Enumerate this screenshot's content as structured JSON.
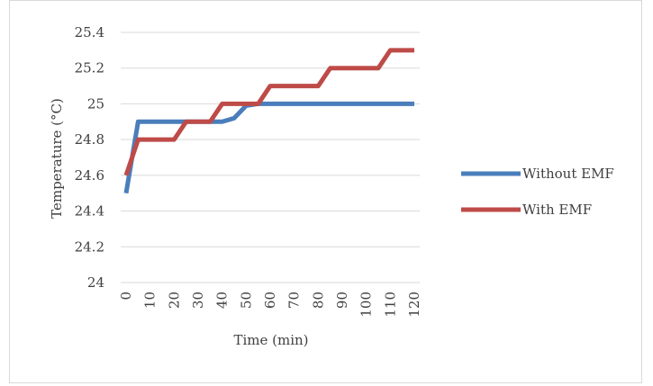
{
  "chart_data": {
    "type": "line",
    "title": "",
    "xlabel": "Time (min)",
    "ylabel": "Temperature (°C)",
    "x": [
      0,
      5,
      10,
      15,
      20,
      25,
      30,
      35,
      40,
      45,
      50,
      55,
      60,
      65,
      70,
      75,
      80,
      85,
      90,
      95,
      100,
      105,
      110,
      115,
      120
    ],
    "x_ticks": [
      "0",
      "10",
      "20",
      "30",
      "40",
      "50",
      "60",
      "70",
      "80",
      "90",
      "100",
      "110",
      "120"
    ],
    "y_ticks": [
      "24",
      "24.2",
      "24.4",
      "24.6",
      "24.8",
      "25",
      "25.2",
      "25.4"
    ],
    "ylim": [
      24,
      25.4
    ],
    "xlim": [
      0,
      120
    ],
    "grid": "horizontal",
    "legend_position": "right",
    "series": [
      {
        "name": "Without EMF",
        "color": "#4a7ebb",
        "values": [
          24.5,
          24.9,
          24.9,
          24.9,
          24.9,
          24.9,
          24.9,
          24.9,
          24.9,
          24.92,
          24.99,
          25.0,
          25.0,
          25.0,
          25.0,
          25.0,
          25.0,
          25.0,
          25.0,
          25.0,
          25.0,
          25.0,
          25.0,
          25.0,
          25.0
        ]
      },
      {
        "name": "With EMF",
        "color": "#be4b48",
        "values": [
          24.6,
          24.8,
          24.8,
          24.8,
          24.8,
          24.9,
          24.9,
          24.9,
          25.0,
          25.0,
          25.0,
          25.0,
          25.1,
          25.1,
          25.1,
          25.1,
          25.1,
          25.2,
          25.2,
          25.2,
          25.2,
          25.2,
          25.3,
          25.3,
          25.3
        ]
      }
    ]
  }
}
